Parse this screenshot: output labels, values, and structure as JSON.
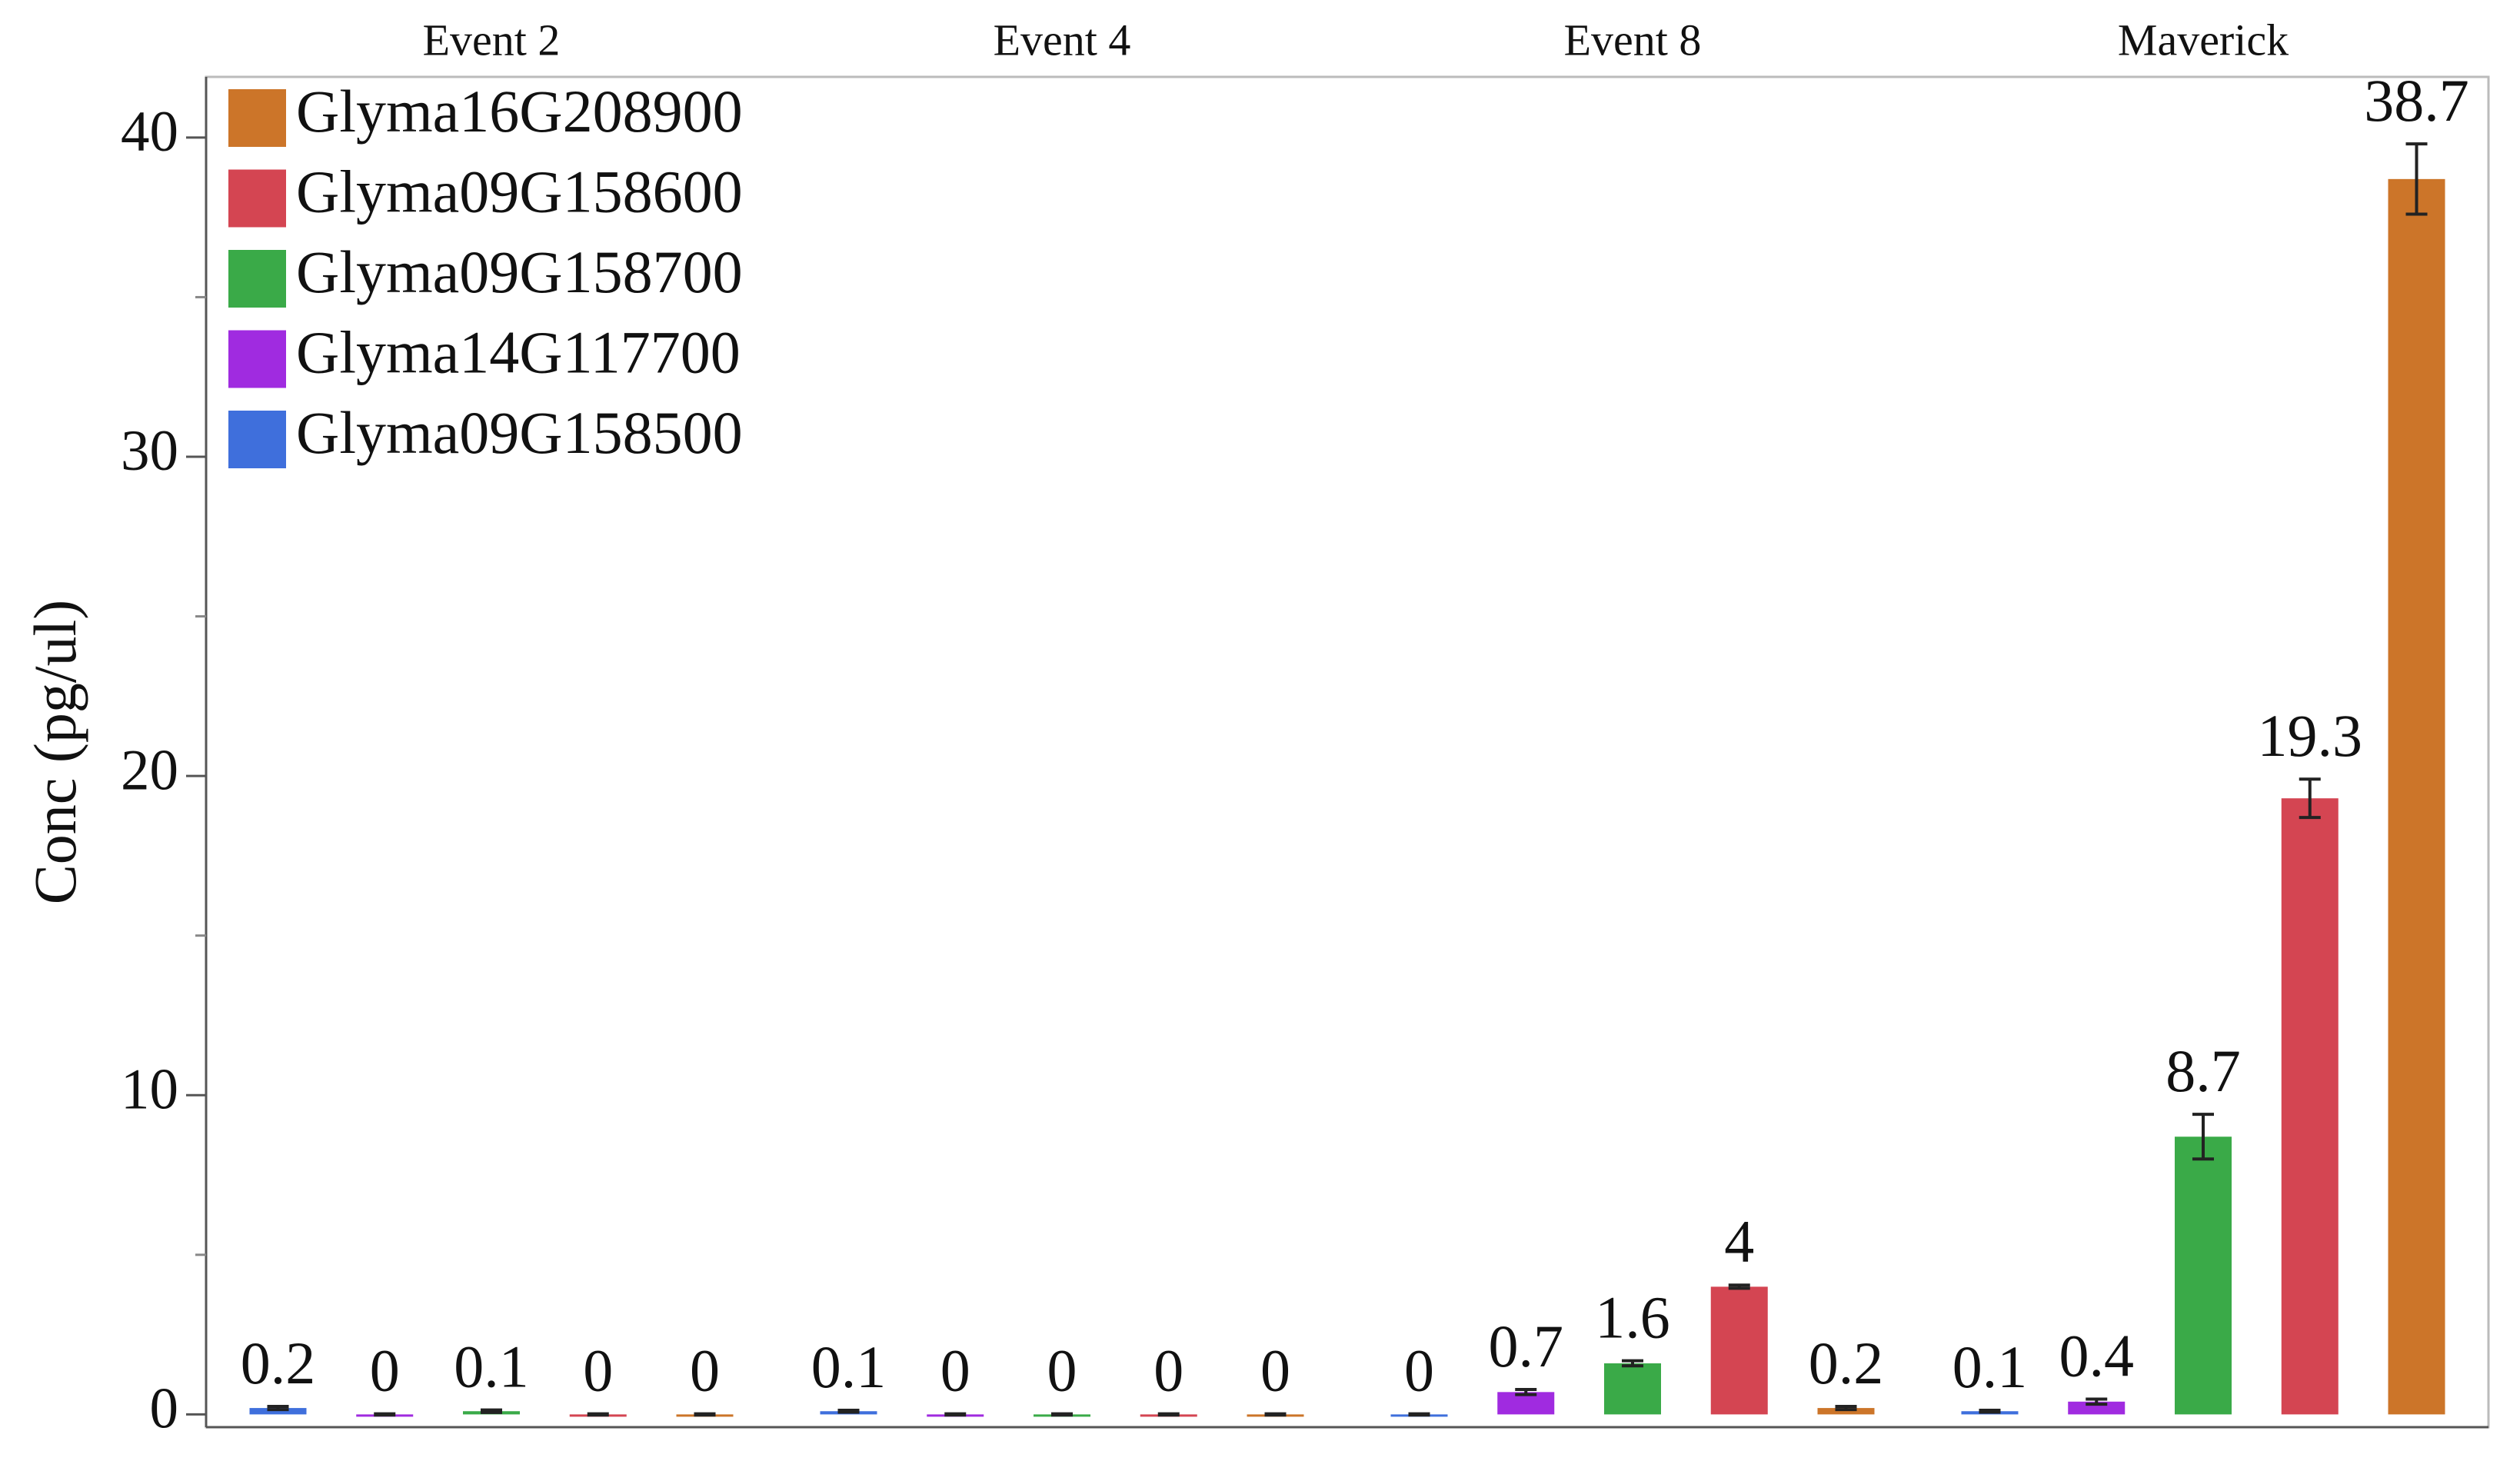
{
  "chart_data": {
    "type": "bar",
    "y_label": "Conc (pg/ul)",
    "categories": [
      "Event 2",
      "Event 4",
      "Event 8",
      "Maverick"
    ],
    "series": [
      {
        "name": "Glyma09G158500",
        "color": "#3f6fdc",
        "values": [
          0.2,
          0.1,
          0,
          0.1
        ],
        "errors": [
          0.05,
          0.03,
          0.02,
          0.03
        ]
      },
      {
        "name": "Glyma14G117700",
        "color": "#a02be0",
        "values": [
          0,
          0,
          0.7,
          0.4
        ],
        "errors": [
          0.02,
          0.02,
          0.08,
          0.08
        ]
      },
      {
        "name": "Glyma09G158700",
        "color": "#3aaa48",
        "values": [
          0.1,
          0,
          1.6,
          8.7
        ],
        "errors": [
          0.04,
          0.02,
          0.08,
          0.7
        ]
      },
      {
        "name": "Glyma09G158600",
        "color": "#d44552",
        "values": [
          0,
          0,
          4,
          19.3
        ],
        "errors": [
          0.02,
          0.02,
          0.05,
          0.6
        ]
      },
      {
        "name": "Glyma16G208900",
        "color": "#cc7529",
        "values": [
          0,
          0,
          0.2,
          38.7
        ],
        "errors": [
          0.02,
          0.02,
          0.05,
          1.1
        ]
      }
    ],
    "ylim": [
      -0.4,
      41.9
    ],
    "yticks": [
      0,
      10,
      20,
      30,
      40
    ],
    "yminorticks": [
      5,
      15,
      25,
      35
    ],
    "legend": "top-left"
  }
}
